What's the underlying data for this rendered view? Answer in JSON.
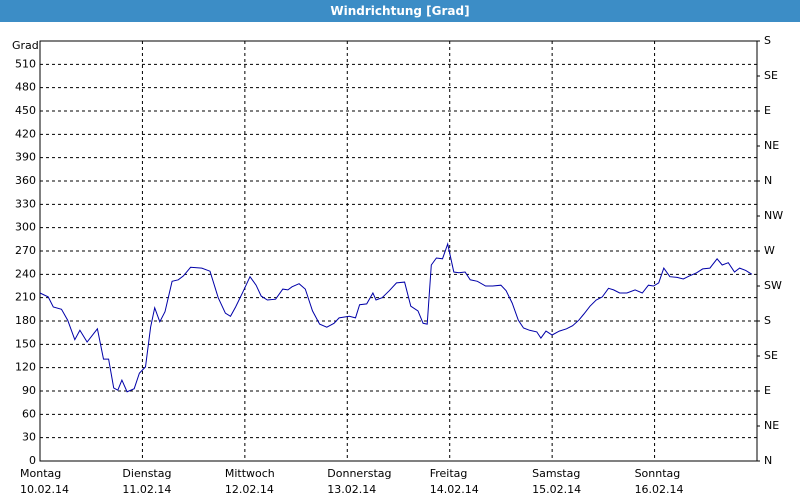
{
  "chart_data": {
    "type": "line",
    "title": "Windrichtung [Grad]",
    "y_label": "Grad",
    "xlim": [
      0,
      7
    ],
    "ylim": [
      0,
      540
    ],
    "y2lim": [
      0,
      540
    ],
    "xticks": [
      {
        "value": 0,
        "label": "Montag"
      },
      {
        "value": 1,
        "label": "Dienstag"
      },
      {
        "value": 2,
        "label": "Mittwoch"
      },
      {
        "value": 3,
        "label": "Donnerstag"
      },
      {
        "value": 4,
        "label": "Freitag"
      },
      {
        "value": 5,
        "label": "Samstag"
      },
      {
        "value": 6,
        "label": "Sonntag"
      }
    ],
    "xtick_dates": [
      "10.02.14",
      "11.02.14",
      "12.02.14",
      "13.02.14",
      "14.02.14",
      "15.02.14",
      "16.02.14"
    ],
    "yticks": [
      0,
      30,
      60,
      90,
      120,
      150,
      180,
      210,
      240,
      270,
      300,
      330,
      360,
      390,
      420,
      450,
      480,
      510
    ],
    "y2ticks": [
      {
        "value": 0,
        "label": "N"
      },
      {
        "value": 45,
        "label": "NE"
      },
      {
        "value": 90,
        "label": "E"
      },
      {
        "value": 135,
        "label": "SE"
      },
      {
        "value": 180,
        "label": "S"
      },
      {
        "value": 225,
        "label": "SW"
      },
      {
        "value": 270,
        "label": "W"
      },
      {
        "value": 315,
        "label": "NW"
      },
      {
        "value": 360,
        "label": "N"
      },
      {
        "value": 405,
        "label": "NE"
      },
      {
        "value": 450,
        "label": "E"
      },
      {
        "value": 495,
        "label": "SE"
      },
      {
        "value": 540,
        "label": "S"
      }
    ],
    "grid": true,
    "series": [
      {
        "name": "Windrichtung",
        "color": "#0000a8",
        "x": [
          0.0,
          0.08,
          0.13,
          0.21,
          0.27,
          0.34,
          0.39,
          0.46,
          0.56,
          0.62,
          0.67,
          0.72,
          0.76,
          0.8,
          0.85,
          0.92,
          0.97,
          1.03,
          1.08,
          1.12,
          1.17,
          1.22,
          1.29,
          1.35,
          1.4,
          1.47,
          1.58,
          1.66,
          1.74,
          1.81,
          1.86,
          1.91,
          1.98,
          2.05,
          2.11,
          2.16,
          2.22,
          2.3,
          2.37,
          2.42,
          2.46,
          2.53,
          2.59,
          2.66,
          2.73,
          2.8,
          2.87,
          2.92,
          3.02,
          3.08,
          3.12,
          3.19,
          3.25,
          3.28,
          3.34,
          3.41,
          3.48,
          3.56,
          3.62,
          3.69,
          3.74,
          3.78,
          3.82,
          3.87,
          3.93,
          3.98,
          4.04,
          4.09,
          4.15,
          4.2,
          4.27,
          4.35,
          4.42,
          4.5,
          4.55,
          4.61,
          4.67,
          4.72,
          4.78,
          4.85,
          4.89,
          4.94,
          5.0,
          5.07,
          5.14,
          5.2,
          5.26,
          5.31,
          5.37,
          5.43,
          5.49,
          5.55,
          5.6,
          5.66,
          5.73,
          5.81,
          5.88,
          5.94,
          5.99,
          6.04,
          6.09,
          6.15,
          6.22,
          6.28,
          6.34,
          6.41,
          6.47,
          6.54,
          6.61,
          6.66,
          6.72,
          6.78,
          6.83,
          6.89,
          6.95
        ],
        "values": [
          216,
          211,
          198,
          195,
          181,
          156,
          168,
          153,
          170,
          131,
          131,
          94,
          91,
          104,
          89,
          93,
          113,
          121,
          172,
          197,
          179,
          192,
          231,
          233,
          238,
          249,
          248,
          244,
          210,
          190,
          186,
          198,
          217,
          237,
          226,
          212,
          207,
          208,
          221,
          220,
          224,
          228,
          221,
          193,
          176,
          172,
          177,
          184,
          186,
          184,
          201,
          202,
          216,
          207,
          210,
          219,
          229,
          230,
          199,
          193,
          177,
          176,
          252,
          261,
          260,
          279,
          243,
          242,
          243,
          233,
          231,
          225,
          225,
          226,
          219,
          203,
          181,
          171,
          168,
          166,
          158,
          167,
          162,
          167,
          170,
          174,
          181,
          189,
          199,
          207,
          211,
          222,
          220,
          216,
          216,
          220,
          216,
          226,
          225,
          229,
          248,
          237,
          236,
          234,
          238,
          242,
          247,
          248,
          260,
          252,
          255,
          243,
          248,
          245,
          240
        ]
      }
    ]
  }
}
